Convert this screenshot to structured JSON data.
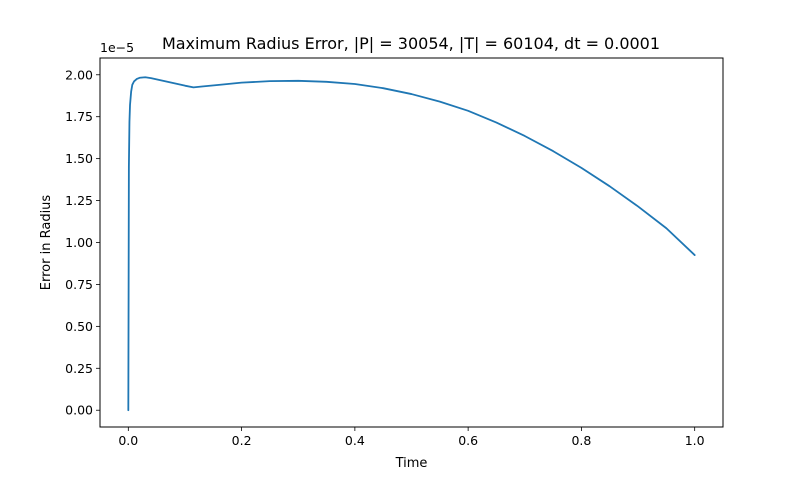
{
  "chart_data": {
    "type": "line",
    "title": "Maximum Radius Error, |P| = 30054, |T| = 60104, dt = 0.0001",
    "xlabel": "Time",
    "ylabel": "Error in Radius",
    "y_offset_label": "1e−5",
    "xlim": [
      -0.05,
      1.05
    ],
    "ylim": [
      -0.1,
      2.1
    ],
    "x_ticks": [
      0.0,
      0.2,
      0.4,
      0.6,
      0.8,
      1.0
    ],
    "x_tick_labels": [
      "0.0",
      "0.2",
      "0.4",
      "0.6",
      "0.8",
      "1.0"
    ],
    "y_ticks": [
      0.0,
      0.25,
      0.5,
      0.75,
      1.0,
      1.25,
      1.5,
      1.75,
      2.0
    ],
    "y_tick_labels": [
      "0.00",
      "0.25",
      "0.50",
      "0.75",
      "1.00",
      "1.25",
      "1.50",
      "1.75",
      "2.00"
    ],
    "grid": false,
    "series": [
      {
        "color": "#1f77b4",
        "x": [
          0.0,
          0.0005,
          0.001,
          0.002,
          0.003,
          0.005,
          0.007,
          0.01,
          0.015,
          0.02,
          0.03,
          0.04,
          0.06,
          0.08,
          0.1,
          0.115,
          0.13,
          0.16,
          0.2,
          0.25,
          0.3,
          0.35,
          0.4,
          0.45,
          0.5,
          0.55,
          0.6,
          0.65,
          0.7,
          0.75,
          0.8,
          0.85,
          0.9,
          0.95,
          1.0
        ],
        "y": [
          0.0,
          0.7,
          1.45,
          1.72,
          1.82,
          1.9,
          1.94,
          1.96,
          1.975,
          1.982,
          1.985,
          1.98,
          1.965,
          1.95,
          1.935,
          1.925,
          1.93,
          1.94,
          1.953,
          1.962,
          1.964,
          1.958,
          1.945,
          1.92,
          1.885,
          1.84,
          1.785,
          1.715,
          1.635,
          1.545,
          1.445,
          1.335,
          1.215,
          1.085,
          0.925
        ]
      }
    ]
  }
}
